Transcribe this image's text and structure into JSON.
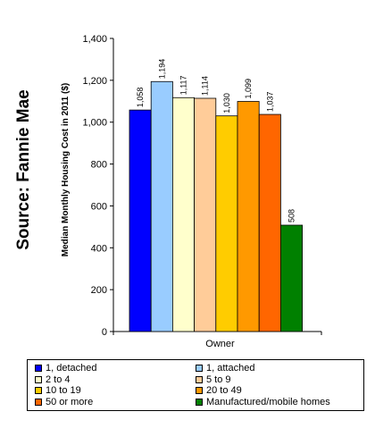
{
  "source_label": "Source: Fannie Mae",
  "chart_data": {
    "type": "bar",
    "categories": [
      "Owner"
    ],
    "xlabel": "",
    "ylabel": "Median Monthly Housing Cost in 2011 ($)",
    "ylim": [
      0,
      1400
    ],
    "yticks": [
      0,
      200,
      400,
      600,
      800,
      1000,
      1200,
      1400
    ],
    "ytick_labels": [
      "0",
      "200",
      "400",
      "600",
      "800",
      "1,000",
      "1,200",
      "1,400"
    ],
    "grid": false,
    "legend_position": "bottom",
    "series": [
      {
        "name": "1, detached",
        "values": [
          1058
        ],
        "label": "1,058",
        "color": "#0000ff"
      },
      {
        "name": "1, attached",
        "values": [
          1194
        ],
        "label": "1,194",
        "color": "#99ccff"
      },
      {
        "name": "2 to 4",
        "values": [
          1117
        ],
        "label": "1,117",
        "color": "#ffffcc"
      },
      {
        "name": "5 to 9",
        "values": [
          1114
        ],
        "label": "1,114",
        "color": "#ffcc99"
      },
      {
        "name": "10 to 19",
        "values": [
          1030
        ],
        "label": "1,030",
        "color": "#ffcc00"
      },
      {
        "name": "20 to 49",
        "values": [
          1099
        ],
        "label": "1,099",
        "color": "#ff9900"
      },
      {
        "name": "50 or more",
        "values": [
          1037
        ],
        "label": "1,037",
        "color": "#ff6600"
      },
      {
        "name": "Manufactured/mobile homes",
        "values": [
          508
        ],
        "label": "508",
        "color": "#008000"
      }
    ]
  }
}
